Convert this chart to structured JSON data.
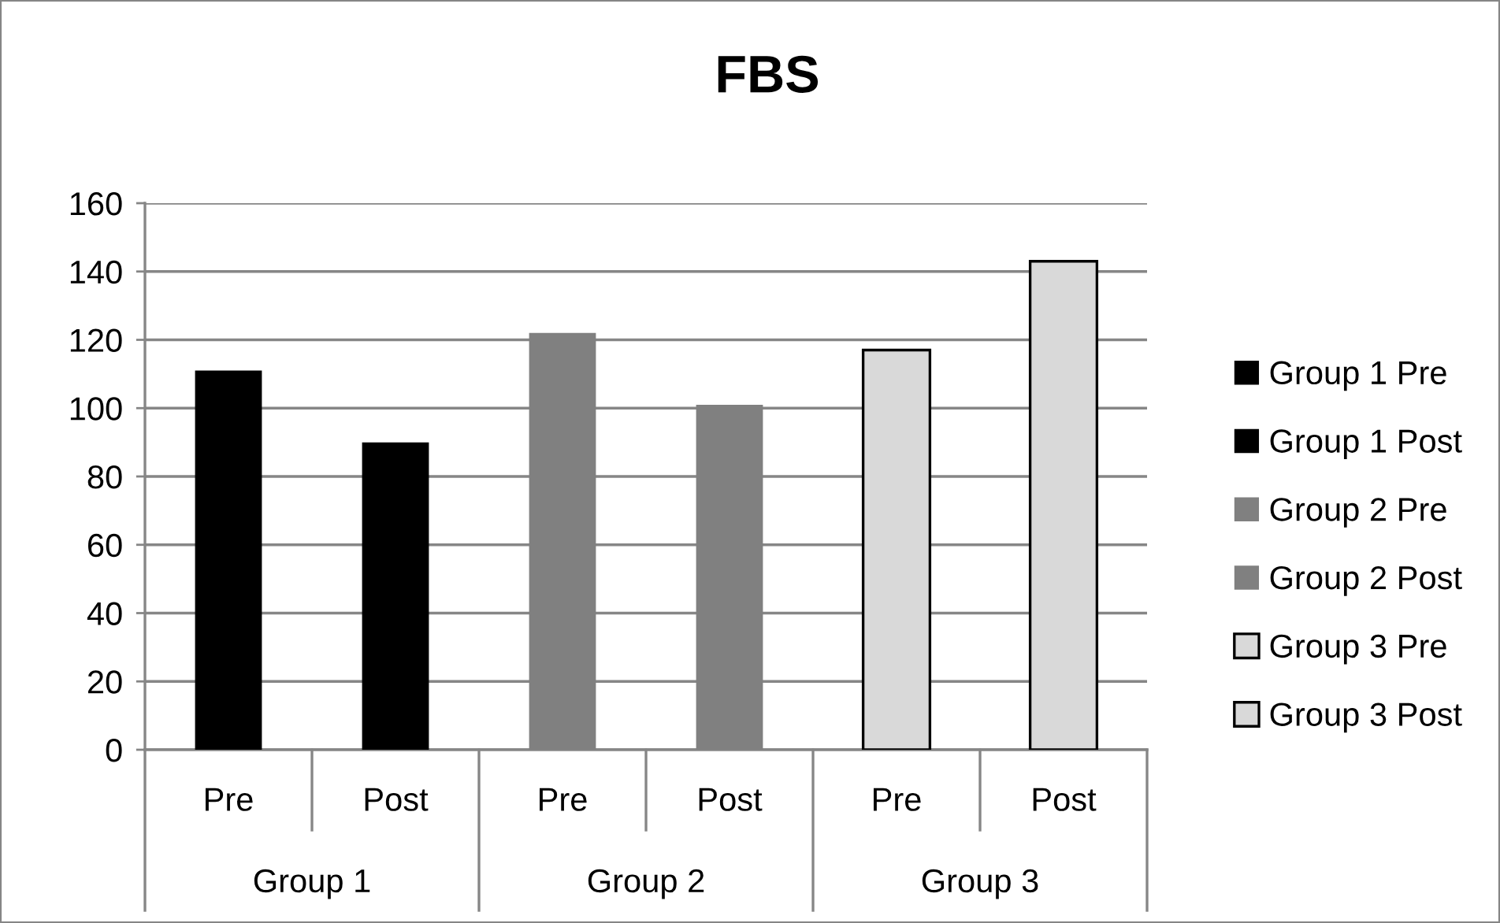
{
  "chart_data": {
    "type": "bar",
    "title": "FBS",
    "categories": [
      "Pre",
      "Post",
      "Pre",
      "Post",
      "Pre",
      "Post"
    ],
    "series": [
      {
        "name": "Group 1 Pre",
        "color": "#000000",
        "values": [
          111,
          null,
          null,
          null,
          null,
          null
        ]
      },
      {
        "name": "Group 1 Post",
        "color": "#000000",
        "values": [
          null,
          90,
          null,
          null,
          null,
          null
        ]
      },
      {
        "name": "Group 2 Pre",
        "color": "#808080",
        "values": [
          null,
          null,
          122,
          null,
          null,
          null
        ]
      },
      {
        "name": "Group 2 Post",
        "color": "#808080",
        "values": [
          null,
          null,
          null,
          101,
          null,
          null
        ]
      },
      {
        "name": "Group 3 Pre",
        "color": "#d9d9d9",
        "values": [
          null,
          null,
          null,
          null,
          117,
          null
        ]
      },
      {
        "name": "Group 3 Post",
        "color": "#d9d9d9",
        "values": [
          null,
          null,
          null,
          null,
          null,
          143
        ]
      }
    ],
    "annotations": [
      "Group 1",
      "Group 2",
      "Group 3"
    ],
    "ylim": [
      0,
      160
    ],
    "yticks": [
      0,
      20,
      40,
      60,
      80,
      100,
      120,
      140,
      160
    ],
    "grid": "y",
    "legend": "right"
  }
}
